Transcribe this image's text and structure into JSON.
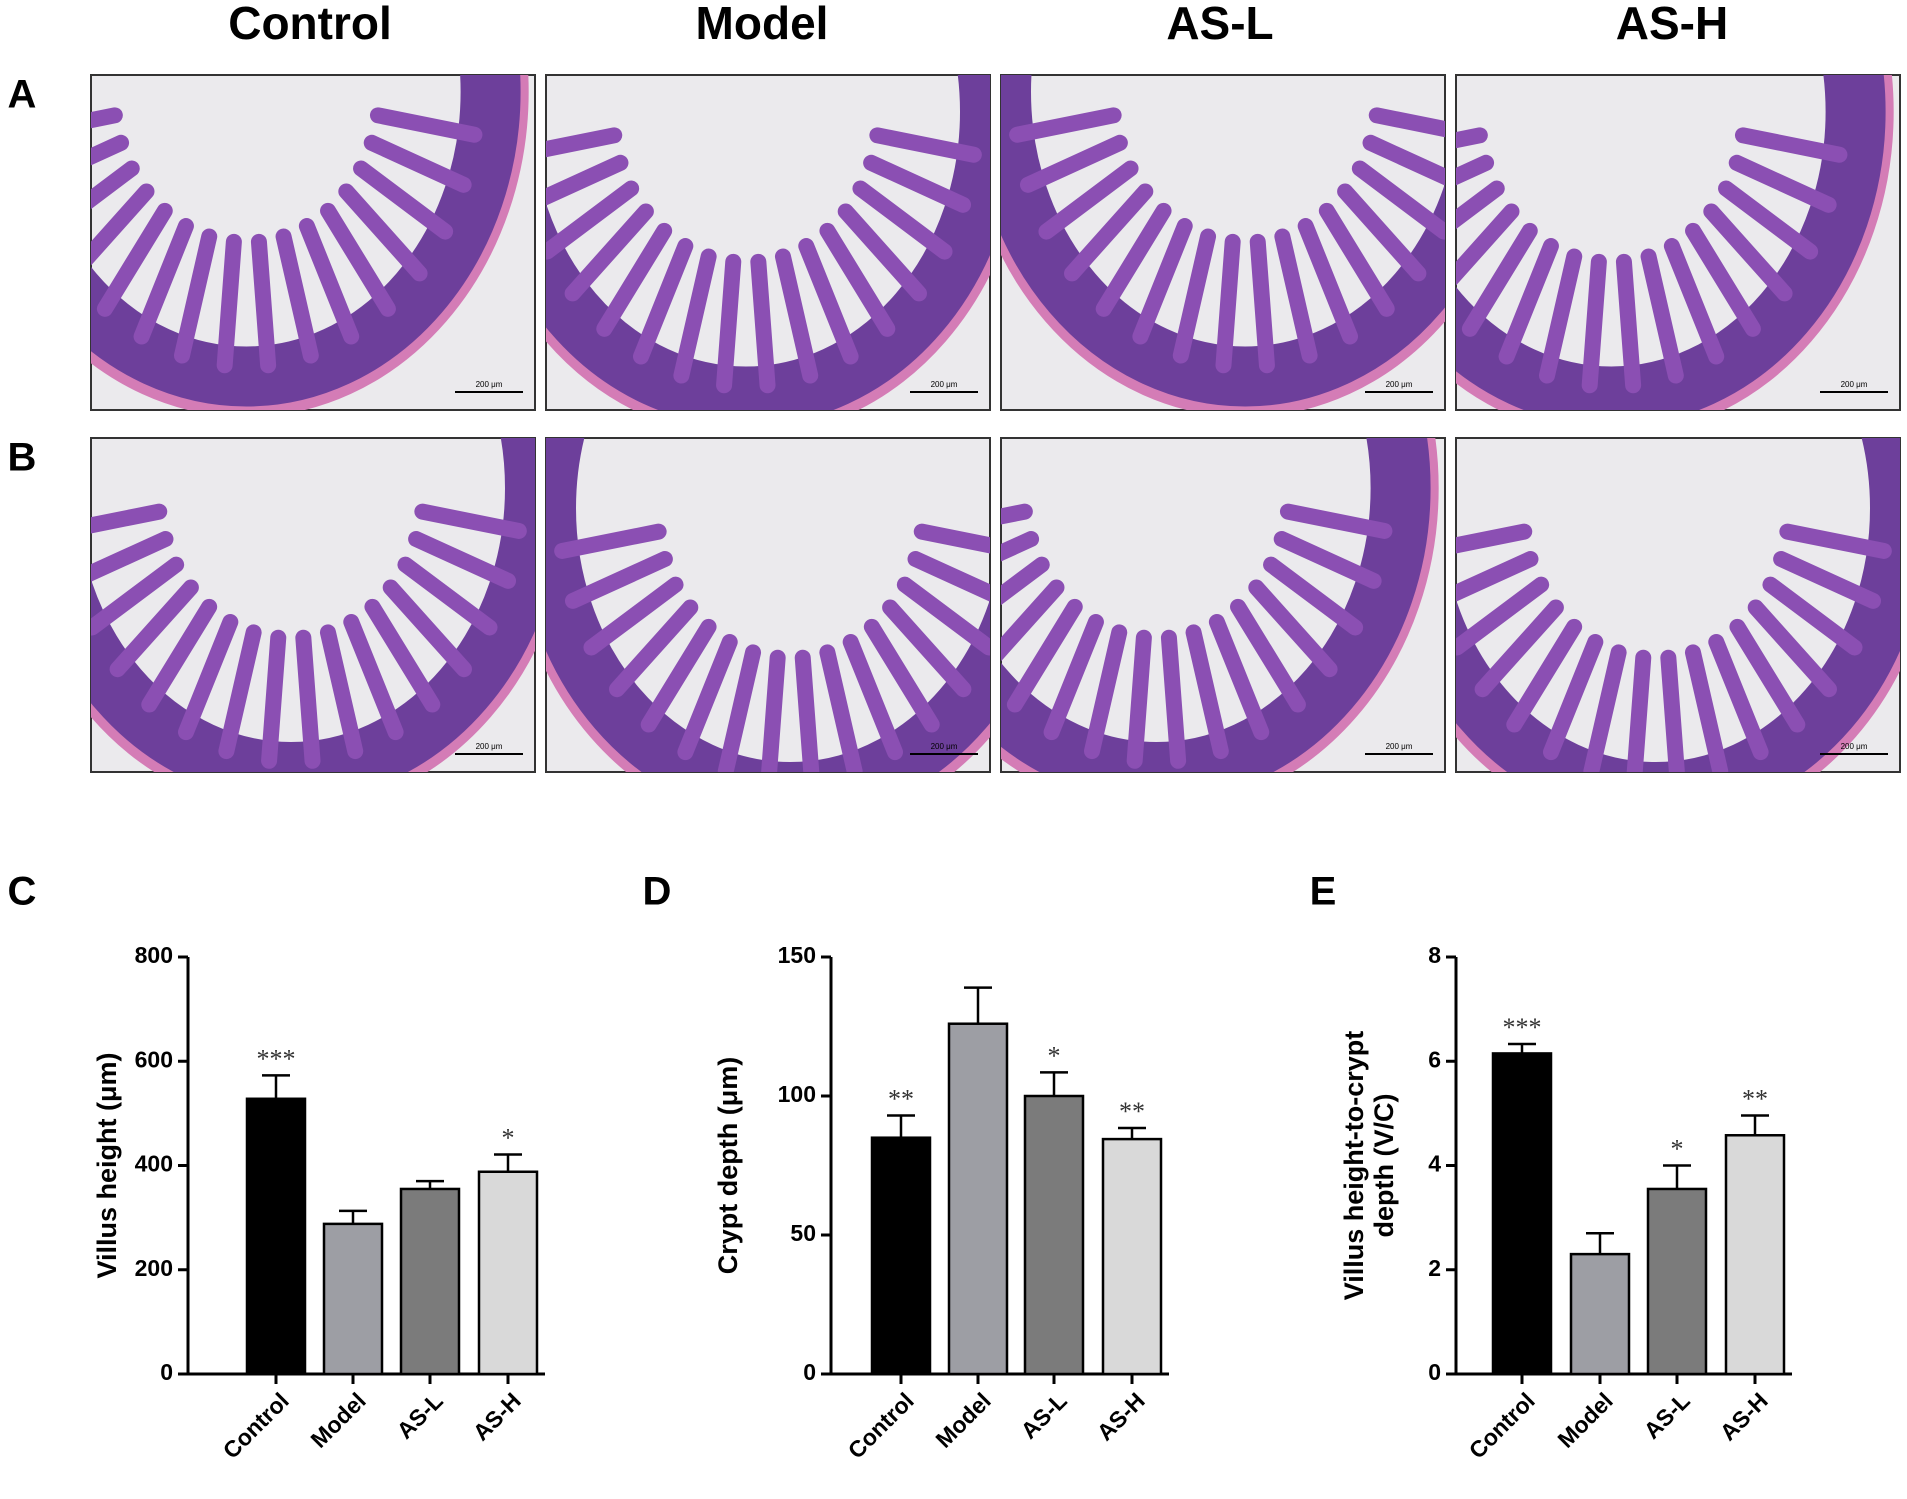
{
  "histology": {
    "columns": [
      "Control",
      "Model",
      "AS-L",
      "AS-H"
    ],
    "rows": [
      {
        "label": "A"
      },
      {
        "label": "B"
      }
    ],
    "scale_bar": "200 μm"
  },
  "chart_data": [
    {
      "type": "bar",
      "panel": "C",
      "ylabel": [
        "Villus height (μm)"
      ],
      "categories": [
        "Control",
        "Model",
        "AS-L",
        "AS-H"
      ],
      "values": [
        528,
        288,
        355,
        388
      ],
      "errors": [
        45,
        25,
        15,
        33
      ],
      "significance": [
        "***",
        null,
        null,
        "*"
      ],
      "colors": [
        "#000000",
        "#9d9ea4",
        "#7b7b7b",
        "#d9d9d9"
      ],
      "ylim": [
        0,
        800
      ],
      "yticks": [
        0,
        200,
        400,
        600,
        800
      ]
    },
    {
      "type": "bar",
      "panel": "D",
      "ylabel": [
        "Crypt depth  (μm)"
      ],
      "categories": [
        "Control",
        "Model",
        "AS-L",
        "AS-H"
      ],
      "values": [
        85,
        126,
        100,
        84.5
      ],
      "errors": [
        8,
        13,
        8.5,
        4
      ],
      "significance": [
        "**",
        null,
        "*",
        "**"
      ],
      "colors": [
        "#000000",
        "#9d9ea4",
        "#7b7b7b",
        "#d9d9d9"
      ],
      "ylim": [
        0,
        150
      ],
      "yticks": [
        0,
        50,
        100,
        150
      ]
    },
    {
      "type": "bar",
      "panel": "E",
      "ylabel": [
        "Villus height-to-crypt",
        "depth (V/C)"
      ],
      "categories": [
        "Control",
        "Model",
        "AS-L",
        "AS-H"
      ],
      "values": [
        6.15,
        2.3,
        3.55,
        4.58
      ],
      "errors": [
        0.18,
        0.4,
        0.45,
        0.38
      ],
      "significance": [
        "***",
        null,
        "*",
        "**"
      ],
      "colors": [
        "#000000",
        "#9d9ea4",
        "#7b7b7b",
        "#d9d9d9"
      ],
      "ylim": [
        0,
        8
      ],
      "yticks": [
        0,
        2,
        4,
        6,
        8
      ]
    }
  ]
}
